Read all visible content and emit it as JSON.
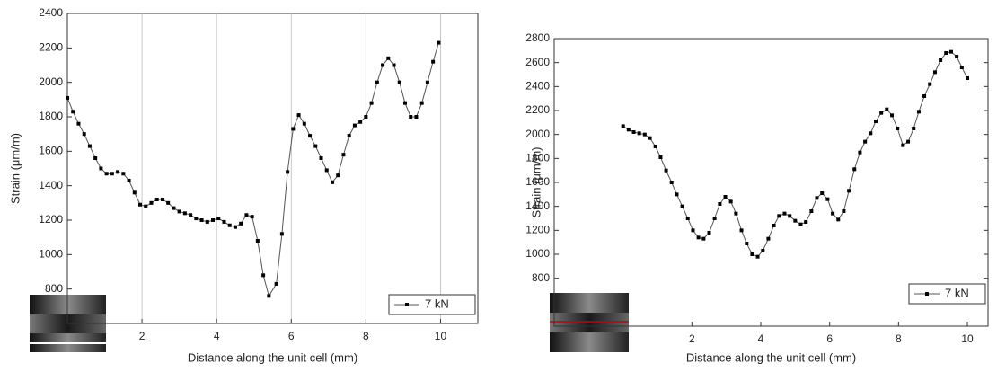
{
  "chart_data": [
    {
      "type": "line",
      "xlabel": "Distance along the unit cell (mm)",
      "ylabel": "Strain (μm/m)",
      "x": [
        0,
        0.15,
        0.3,
        0.45,
        0.6,
        0.75,
        0.9,
        1.05,
        1.2,
        1.35,
        1.5,
        1.65,
        1.8,
        1.95,
        2.1,
        2.25,
        2.4,
        2.55,
        2.7,
        2.85,
        3.0,
        3.15,
        3.3,
        3.45,
        3.6,
        3.75,
        3.9,
        4.05,
        4.2,
        4.35,
        4.5,
        4.65,
        4.8,
        4.95,
        5.1,
        5.25,
        5.4,
        5.6,
        5.75,
        5.9,
        6.05,
        6.2,
        6.35,
        6.5,
        6.65,
        6.8,
        6.95,
        7.1,
        7.25,
        7.4,
        7.55,
        7.7,
        7.85,
        8.0,
        8.15,
        8.3,
        8.45,
        8.6,
        8.75,
        8.9,
        9.05,
        9.2,
        9.35,
        9.5,
        9.65,
        9.8,
        9.95
      ],
      "series": [
        {
          "name": "7 kN",
          "color": "#000000",
          "values": [
            1910,
            1830,
            1760,
            1700,
            1630,
            1560,
            1500,
            1470,
            1470,
            1480,
            1470,
            1430,
            1360,
            1290,
            1280,
            1300,
            1320,
            1320,
            1300,
            1270,
            1250,
            1240,
            1230,
            1210,
            1200,
            1190,
            1200,
            1210,
            1190,
            1170,
            1160,
            1180,
            1230,
            1220,
            1080,
            880,
            760,
            830,
            1120,
            1480,
            1730,
            1810,
            1760,
            1690,
            1630,
            1560,
            1490,
            1420,
            1460,
            1580,
            1690,
            1750,
            1770,
            1800,
            1880,
            2000,
            2100,
            2140,
            2100,
            2000,
            1880,
            1800,
            1800,
            1880,
            2000,
            2120,
            2230
          ]
        }
      ],
      "xlim": [
        0,
        11
      ],
      "ylim": [
        600,
        2400
      ],
      "xticks": [
        2,
        4,
        6,
        8,
        10
      ],
      "yticks": [
        800,
        1000,
        1200,
        1400,
        1600,
        1800,
        2000,
        2200,
        2400
      ],
      "grid": true,
      "legend": "lower right"
    },
    {
      "type": "line",
      "xlabel": "Distance along the unit cell (mm)",
      "ylabel": "Strain (μm/m)",
      "x": [
        0,
        0.16,
        0.31,
        0.47,
        0.63,
        0.78,
        0.94,
        1.09,
        1.25,
        1.41,
        1.56,
        1.72,
        1.88,
        2.03,
        2.19,
        2.34,
        2.5,
        2.66,
        2.81,
        2.97,
        3.13,
        3.28,
        3.44,
        3.59,
        3.75,
        3.91,
        4.06,
        4.22,
        4.38,
        4.53,
        4.69,
        4.84,
        5,
        5.16,
        5.31,
        5.47,
        5.63,
        5.78,
        5.94,
        6.09,
        6.25,
        6.41,
        6.56,
        6.72,
        6.88,
        7.03,
        7.19,
        7.34,
        7.5,
        7.66,
        7.81,
        7.97,
        8.13,
        8.28,
        8.44,
        8.59,
        8.75,
        8.91,
        9.06,
        9.22,
        9.38,
        9.53,
        9.69,
        9.84,
        10
      ],
      "series": [
        {
          "name": "7 kN",
          "color": "#000000",
          "values": [
            2070,
            2040,
            2020,
            2010,
            2000,
            1970,
            1900,
            1810,
            1700,
            1600,
            1500,
            1400,
            1300,
            1200,
            1140,
            1130,
            1180,
            1300,
            1420,
            1480,
            1440,
            1340,
            1200,
            1090,
            1000,
            980,
            1030,
            1130,
            1240,
            1320,
            1340,
            1320,
            1280,
            1250,
            1270,
            1360,
            1470,
            1510,
            1460,
            1340,
            1290,
            1360,
            1530,
            1710,
            1850,
            1940,
            2010,
            2110,
            2180,
            2210,
            2160,
            2050,
            1910,
            1940,
            2050,
            2190,
            2320,
            2420,
            2520,
            2620,
            2680,
            2690,
            2650,
            2560,
            2470
          ]
        }
      ],
      "xlim": [
        -2,
        10.6
      ],
      "ylim": [
        400,
        2800
      ],
      "xticks": [
        2,
        4,
        6,
        8,
        10
      ],
      "yticks": [
        800,
        1000,
        1200,
        1400,
        1600,
        1800,
        2000,
        2200,
        2400,
        2600,
        2800
      ],
      "grid": false,
      "legend": "lower right"
    }
  ]
}
